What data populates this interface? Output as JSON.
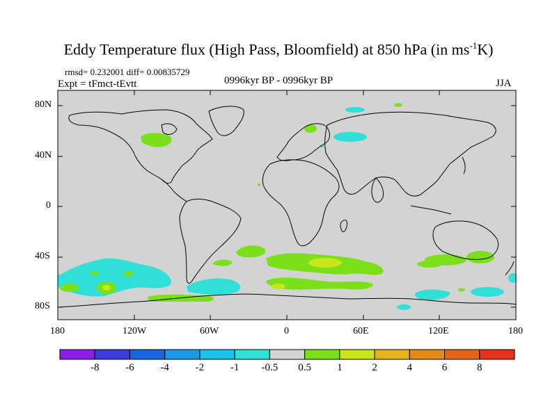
{
  "title_main": "Eddy Temperature flux (High Pass, Bloomfield) at 850 hPa (in ms",
  "title_sup": "-1",
  "title_end": "K)",
  "stats": "rmsd= 0.232001 diff= 0.00835729",
  "experiment": "Expt = tFmct-tEvtt",
  "period": "0996kyr BP - 0996kyr BP",
  "season": "JJA",
  "lat_labels": [
    "80N",
    "40N",
    "0",
    "40S",
    "80S"
  ],
  "lon_labels": [
    "180",
    "120W",
    "60W",
    "0",
    "60E",
    "120E",
    "180"
  ],
  "colorbar": {
    "labels": [
      "-8",
      "-6",
      "-4",
      "-2",
      "-1",
      "-0.5",
      "0.5",
      "1",
      "2",
      "4",
      "6",
      "8"
    ],
    "colors": [
      "#8a1ee6",
      "#3b3bd9",
      "#1a64e0",
      "#1a9ae6",
      "#18c2e8",
      "#30e0d8",
      "#d3d3d3",
      "#7be01a",
      "#c8e61a",
      "#e6b41a",
      "#e68a1a",
      "#e6641a",
      "#e6321a"
    ]
  },
  "map": {
    "background": "#d3d3d3",
    "features": [
      {
        "name": "s-pacific-cyan",
        "value": "-1 to -0.5",
        "color": "#30e0d8"
      },
      {
        "name": "s-atlantic-indian-green",
        "value": "0.5 to 1",
        "color": "#7be01a"
      },
      {
        "name": "s-indian-yellow",
        "value": "1 to 2",
        "color": "#c8e61a"
      },
      {
        "name": "antarctic-cyan",
        "value": "-1 to -0.5",
        "color": "#30e0d8"
      },
      {
        "name": "n-america-green",
        "value": "0.5 to 1",
        "color": "#7be01a"
      },
      {
        "name": "siberia-cyan",
        "value": "-1 to -0.5",
        "color": "#30e0d8"
      },
      {
        "name": "scandinavia-green",
        "value": "0.5 to 1",
        "color": "#7be01a"
      }
    ]
  }
}
